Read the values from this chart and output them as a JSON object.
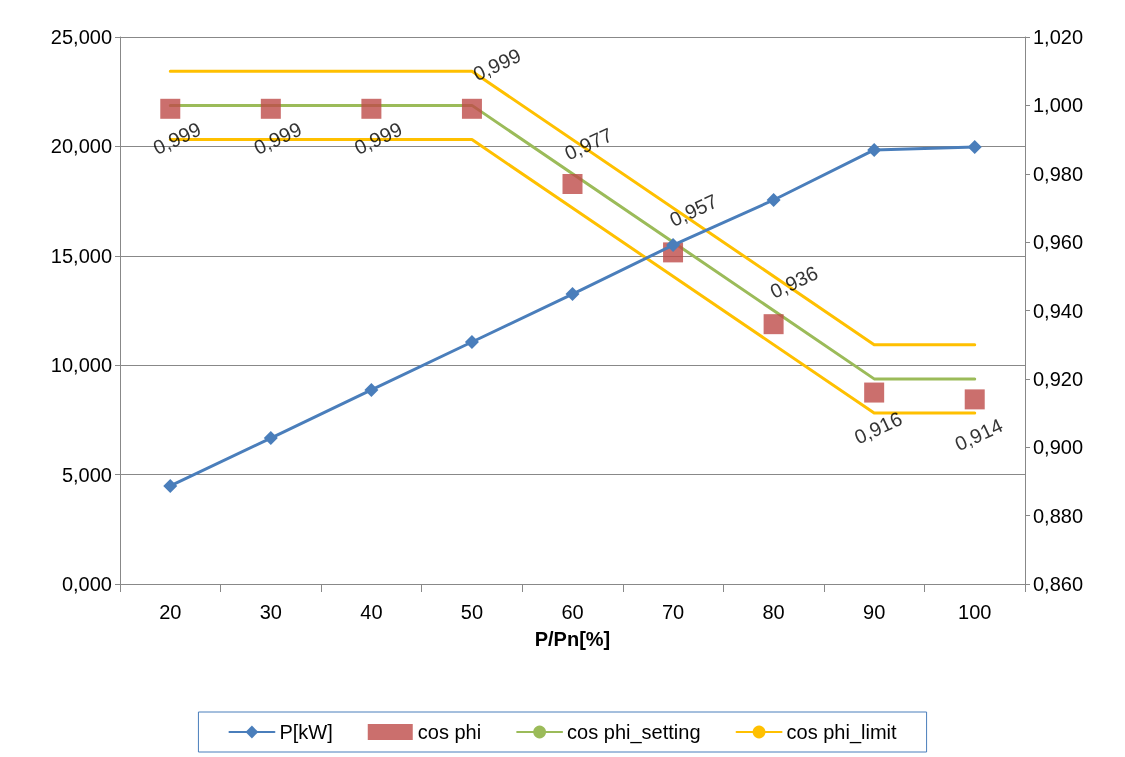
{
  "chart_data": {
    "type": "line",
    "xlabel": "P/Pn[%]",
    "categories": [
      "20",
      "30",
      "40",
      "50",
      "60",
      "70",
      "80",
      "90",
      "100"
    ],
    "series": [
      {
        "name": "P[kW]",
        "color": "#4a7ebb",
        "marker": "diamond",
        "values": [
          4.48,
          6.67,
          8.87,
          11.06,
          13.25,
          15.49,
          17.55,
          19.84,
          19.97
        ]
      },
      {
        "name": "cos phi",
        "type": "scatter",
        "axis": "y2",
        "color": "#be4b48",
        "marker": "square",
        "values": [
          0.999,
          0.999,
          0.999,
          0.999,
          0.977,
          0.957,
          0.936,
          0.916,
          0.914
        ],
        "value_labels": [
          "0,999",
          "0,999",
          "0,999",
          "0,999",
          "0,977",
          "0,957",
          "0,936",
          "0,916",
          "0,914"
        ]
      },
      {
        "name": "cos phi_setting",
        "axis": "y2",
        "color": "#9bbb59",
        "marker": "none",
        "x": [
          "20",
          "50",
          "90",
          "100"
        ],
        "values": [
          1.0,
          1.0,
          0.92,
          0.92
        ]
      },
      {
        "name": "cos phi_limit",
        "axis": "y2",
        "color": "#ffc000",
        "marker": "none",
        "x": [
          "20",
          "50",
          "90",
          "100"
        ],
        "values": [
          1.01,
          1.01,
          0.93,
          0.93
        ]
      },
      {
        "axis": "y2",
        "color": "#ffc000",
        "marker": "none",
        "x": [
          "20",
          "50",
          "90",
          "100"
        ],
        "values": [
          0.99,
          0.99,
          0.91,
          0.91
        ]
      }
    ],
    "ylim": [
      0,
      25
    ],
    "yticks": [
      {
        "value": 0,
        "label": "0,000"
      },
      {
        "value": 5,
        "label": "5,000"
      },
      {
        "value": 10,
        "label": "10,000"
      },
      {
        "value": 15,
        "label": "15,000"
      },
      {
        "value": 20,
        "label": "20,000"
      },
      {
        "value": 25,
        "label": "25,000"
      }
    ],
    "y2lim": [
      0.86,
      1.02
    ],
    "y2ticks": [
      {
        "value": 0.86,
        "label": "0,860"
      },
      {
        "value": 0.88,
        "label": "0,880"
      },
      {
        "value": 0.9,
        "label": "0,900"
      },
      {
        "value": 0.92,
        "label": "0,920"
      },
      {
        "value": 0.94,
        "label": "0,940"
      },
      {
        "value": 0.96,
        "label": "0,960"
      },
      {
        "value": 0.98,
        "label": "0,980"
      },
      {
        "value": 1.0,
        "label": "1,000"
      },
      {
        "value": 1.02,
        "label": "1,020"
      }
    ],
    "grid": "y",
    "legend": "bottom"
  }
}
